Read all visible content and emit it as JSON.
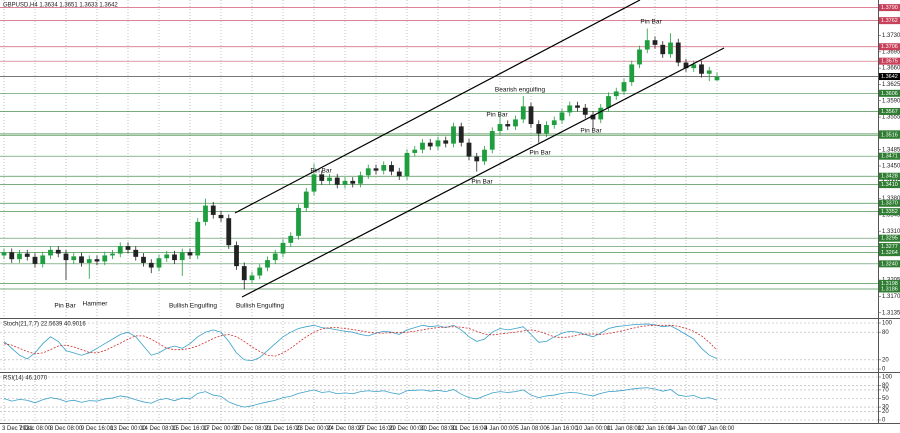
{
  "chart_data": [
    {
      "type": "candlestick",
      "title": "GBPUSD,H4  1.3634 1.3651 1.3633 1.3642",
      "categories": [
        "3 Dec 2021",
        null,
        null,
        null,
        "7 Dec 08:00",
        null,
        null,
        null,
        "8 Dec 08:00",
        null,
        null,
        null,
        "9 Dec 16:00",
        null,
        null,
        null,
        "13 Dec 00:00",
        null,
        null,
        null,
        "14 Dec 08:00",
        null,
        null,
        null,
        "15 Dec 16:00",
        null,
        null,
        null,
        "17 Dec 00:00",
        null,
        null,
        null,
        "20 Dec 08:00",
        null,
        null,
        null,
        "21 Dec 16:00",
        null,
        null,
        null,
        "23 Dec 00:00",
        null,
        null,
        null,
        "24 Dec 08:00",
        null,
        null,
        null,
        "27 Dec 16:00",
        null,
        null,
        null,
        "29 Dec 00:00",
        null,
        null,
        null,
        "30 Dec 08:00",
        null,
        null,
        null,
        "31 Dec 16:00",
        null,
        null,
        null,
        "4 Jan 00:00",
        null,
        null,
        null,
        "5 Jan 08:00",
        null,
        null,
        null,
        "6 Jan 16:00",
        null,
        null,
        null,
        "10 Jan 00:00",
        null,
        null,
        null,
        "11 Jan 08:00",
        null,
        null,
        null,
        "12 Jan 16:00",
        null,
        null,
        null,
        "14 Jan 00:00",
        null,
        null,
        null,
        "17 Jan 08:00"
      ],
      "open": [
        1.3258,
        1.3265,
        1.325,
        1.3262,
        1.3255,
        1.324,
        1.3258,
        1.327,
        1.3262,
        1.3248,
        1.3256,
        1.3242,
        1.325,
        1.3245,
        1.3258,
        1.3262,
        1.3278,
        1.327,
        1.3255,
        1.3242,
        1.3232,
        1.3252,
        1.326,
        1.3248,
        1.3265,
        1.3258,
        1.333,
        1.3365,
        1.3345,
        1.3338,
        1.328,
        1.3235,
        1.3205,
        1.3215,
        1.3232,
        1.3248,
        1.3262,
        1.3285,
        1.33,
        1.336,
        1.3395,
        1.3432,
        1.3418,
        1.3425,
        1.341,
        1.3418,
        1.3412,
        1.343,
        1.3445,
        1.344,
        1.3452,
        1.3438,
        1.3428,
        1.3478,
        1.3485,
        1.35,
        1.3492,
        1.3505,
        1.3498,
        1.3535,
        1.35,
        1.347,
        1.346,
        1.3485,
        1.3525,
        1.354,
        1.3535,
        1.355,
        1.3578,
        1.354,
        1.352,
        1.3538,
        1.3548,
        1.3565,
        1.358,
        1.3575,
        1.356,
        1.355,
        1.3575,
        1.36,
        1.361,
        1.363,
        1.3668,
        1.37,
        1.372,
        1.371,
        1.369,
        1.3715,
        1.3672,
        1.366,
        1.3668,
        1.3648,
        1.3634
      ],
      "high": [
        1.3273,
        1.3273,
        1.327,
        1.327,
        1.3263,
        1.3266,
        1.3278,
        1.3278,
        1.327,
        1.3264,
        1.3264,
        1.3258,
        1.3258,
        1.3266,
        1.327,
        1.3286,
        1.3286,
        1.3278,
        1.3263,
        1.325,
        1.326,
        1.3268,
        1.3268,
        1.3273,
        1.3273,
        1.3338,
        1.338,
        1.3373,
        1.3353,
        1.3346,
        1.3288,
        1.3243,
        1.3223,
        1.324,
        1.3256,
        1.327,
        1.3293,
        1.3308,
        1.3368,
        1.3403,
        1.3455,
        1.344,
        1.3433,
        1.3433,
        1.3426,
        1.3426,
        1.3438,
        1.3453,
        1.3453,
        1.346,
        1.346,
        1.3446,
        1.3486,
        1.3493,
        1.3508,
        1.3508,
        1.3513,
        1.3513,
        1.3543,
        1.3543,
        1.3508,
        1.3478,
        1.3493,
        1.3533,
        1.356,
        1.3548,
        1.3558,
        1.36,
        1.3586,
        1.3548,
        1.3546,
        1.3556,
        1.3573,
        1.3588,
        1.3588,
        1.3583,
        1.3568,
        1.3583,
        1.3608,
        1.3618,
        1.3638,
        1.3676,
        1.3708,
        1.3745,
        1.3728,
        1.3718,
        1.3735,
        1.3723,
        1.368,
        1.3676,
        1.3676,
        1.3663,
        1.3651
      ],
      "low": [
        1.325,
        1.3242,
        1.3242,
        1.3247,
        1.3232,
        1.3232,
        1.325,
        1.3254,
        1.3205,
        1.324,
        1.3234,
        1.3208,
        1.3237,
        1.3237,
        1.325,
        1.3254,
        1.3262,
        1.3247,
        1.3234,
        1.322,
        1.3224,
        1.3244,
        1.324,
        1.3214,
        1.325,
        1.325,
        1.3322,
        1.3337,
        1.333,
        1.3272,
        1.3227,
        1.3185,
        1.3197,
        1.3207,
        1.3224,
        1.324,
        1.3254,
        1.3277,
        1.3292,
        1.3352,
        1.3387,
        1.341,
        1.341,
        1.3402,
        1.3402,
        1.3404,
        1.3404,
        1.3422,
        1.3432,
        1.3432,
        1.343,
        1.342,
        1.342,
        1.347,
        1.3477,
        1.3484,
        1.3484,
        1.349,
        1.349,
        1.3492,
        1.3462,
        1.3438,
        1.3452,
        1.3477,
        1.3517,
        1.3527,
        1.3527,
        1.3542,
        1.3532,
        1.35,
        1.3512,
        1.353,
        1.354,
        1.3557,
        1.3567,
        1.3552,
        1.353,
        1.3542,
        1.3567,
        1.3592,
        1.3602,
        1.3622,
        1.366,
        1.3692,
        1.3702,
        1.3682,
        1.3682,
        1.3664,
        1.3652,
        1.3652,
        1.364,
        1.3632,
        1.3633
      ],
      "close": [
        1.3265,
        1.325,
        1.3262,
        1.3255,
        1.324,
        1.3258,
        1.327,
        1.3262,
        1.3248,
        1.3256,
        1.3242,
        1.325,
        1.3245,
        1.3258,
        1.3262,
        1.3278,
        1.327,
        1.3255,
        1.3242,
        1.3232,
        1.3252,
        1.326,
        1.3248,
        1.3265,
        1.3258,
        1.333,
        1.3365,
        1.3345,
        1.3338,
        1.328,
        1.3235,
        1.3205,
        1.3215,
        1.3232,
        1.3248,
        1.3262,
        1.3285,
        1.33,
        1.336,
        1.3395,
        1.3432,
        1.3418,
        1.3425,
        1.341,
        1.3418,
        1.3412,
        1.343,
        1.3445,
        1.344,
        1.3452,
        1.3438,
        1.3428,
        1.3478,
        1.3485,
        1.35,
        1.3492,
        1.3505,
        1.3498,
        1.3535,
        1.35,
        1.347,
        1.346,
        1.3485,
        1.3525,
        1.354,
        1.3535,
        1.355,
        1.3578,
        1.354,
        1.352,
        1.3538,
        1.3548,
        1.3565,
        1.358,
        1.3575,
        1.356,
        1.355,
        1.3575,
        1.36,
        1.361,
        1.363,
        1.3668,
        1.37,
        1.372,
        1.371,
        1.369,
        1.3715,
        1.3672,
        1.366,
        1.3668,
        1.3648,
        1.3655,
        1.3642
      ],
      "up_color": "#1e9e3e",
      "down_color": "#222222",
      "ylim": [
        1.3128,
        1.3802
      ],
      "yticks": [
        1.3135,
        {
          "value": 1.317,
          "label": "1.3170"
        },
        1.3205,
        {
          "value": 1.324,
          "label": "1.3240"
        },
        1.3275,
        {
          "value": 1.331,
          "label": "1.3310"
        },
        1.3345,
        {
          "value": 1.338,
          "label": "1.3380"
        },
        1.3415,
        {
          "value": 1.345,
          "label": "1.3450"
        },
        1.3485,
        {
          "value": 1.352,
          "label": "1.3520"
        },
        1.3555,
        {
          "value": 1.359,
          "label": "1.3590"
        },
        1.3625,
        {
          "value": 1.366,
          "label": "1.3660"
        },
        1.3695,
        {
          "value": 1.373,
          "label": "1.3730"
        }
      ],
      "levels": [
        {
          "value": 1.379,
          "label": "1.3790"
        },
        1.3762,
        1.3706,
        1.3675,
        1.3642,
        1.3606,
        1.3567,
        1.3519,
        1.3516,
        1.3471,
        1.3428,
        {
          "value": 1.341,
          "label": "1.3410"
        },
        {
          "value": 1.337,
          "label": "1.3370"
        },
        1.3352,
        1.3295,
        1.3277,
        1.3264,
        {
          "value": 1.324,
          "label": "1.3240"
        },
        1.3198,
        1.3186
      ],
      "level_colors": [
        "#c8405a",
        "#c8405a",
        "#c8405a",
        "#c8405a",
        "#000000",
        "#2e7d32",
        "#2e7d32",
        "#2e7d32",
        "#2e7d32",
        "#2e7d32",
        "#2e7d32",
        "#2e7d32",
        "#2e7d32",
        "#2e7d32",
        "#2e7d32",
        "#2e7d32",
        "#2e7d32",
        "#2e7d32",
        "#2e7d32",
        "#2e7d32"
      ],
      "annotations": [
        "Pin Bar",
        "Hammer",
        "Bullish Engulfing",
        "Bullish Engulfing",
        "Pin Bar",
        "Pin Bar",
        "Pin Bar",
        "Bearish engulfing",
        "Pin Bar",
        "Pin Bar",
        "Pin Bar"
      ]
    },
    {
      "type": "line",
      "title": "Stoch(21,7,7) 22.5639 40.9016",
      "series": [
        {
          "color": "#3aa0c8",
          "dashed": false,
          "values": [
            60,
            45,
            30,
            22,
            35,
            55,
            70,
            60,
            40,
            35,
            30,
            35,
            45,
            55,
            65,
            75,
            80,
            70,
            50,
            30,
            35,
            45,
            50,
            45,
            55,
            70,
            80,
            85,
            80,
            60,
            35,
            20,
            18,
            25,
            40,
            55,
            70,
            80,
            88,
            92,
            95,
            90,
            88,
            85,
            82,
            80,
            75,
            72,
            78,
            82,
            80,
            75,
            85,
            90,
            95,
            92,
            94,
            90,
            95,
            85,
            70,
            60,
            65,
            80,
            88,
            85,
            88,
            92,
            75,
            58,
            60,
            70,
            78,
            82,
            80,
            75,
            70,
            78,
            88,
            92,
            94,
            96,
            97,
            98,
            96,
            92,
            94,
            85,
            75,
            65,
            45,
            30,
            22.5639
          ]
        },
        {
          "color": "#d03030",
          "dashed": true,
          "values": [
            55,
            52,
            45,
            38,
            33,
            35,
            42,
            50,
            52,
            48,
            42,
            36,
            35,
            40,
            48,
            56,
            65,
            72,
            72,
            65,
            55,
            45,
            42,
            42,
            45,
            50,
            58,
            66,
            73,
            75,
            70,
            60,
            48,
            38,
            30,
            28,
            35,
            45,
            58,
            70,
            80,
            87,
            90,
            90,
            88,
            86,
            83,
            80,
            78,
            78,
            79,
            79,
            80,
            82,
            85,
            88,
            90,
            91,
            92,
            91,
            88,
            82,
            76,
            74,
            76,
            78,
            80,
            83,
            85,
            82,
            76,
            70,
            68,
            70,
            74,
            76,
            76,
            75,
            77,
            80,
            84,
            88,
            92,
            94,
            95,
            95,
            95,
            93,
            88,
            82,
            72,
            58,
            40.9016
          ]
        }
      ],
      "ylim": [
        0,
        100
      ],
      "yticks": [
        0,
        20,
        80,
        100
      ]
    },
    {
      "type": "line",
      "title": "RSI(14) 46.1070",
      "series": [
        {
          "color": "#3aa0c8",
          "dashed": false,
          "values": [
            50,
            44,
            48,
            46,
            40,
            47,
            52,
            49,
            43,
            46,
            41,
            45,
            44,
            49,
            51,
            56,
            53,
            47,
            42,
            39,
            47,
            50,
            45,
            51,
            49,
            62,
            66,
            58,
            55,
            42,
            35,
            30,
            33,
            38,
            42,
            46,
            52,
            55,
            62,
            66,
            70,
            64,
            66,
            61,
            63,
            61,
            66,
            68,
            66,
            68,
            63,
            60,
            68,
            69,
            70,
            67,
            69,
            66,
            71,
            60,
            52,
            49,
            56,
            63,
            66,
            64,
            66,
            70,
            58,
            52,
            56,
            58,
            62,
            64,
            63,
            59,
            56,
            62,
            66,
            67,
            69,
            72,
            74,
            75,
            72,
            67,
            71,
            58,
            55,
            57,
            50,
            52,
            46.107
          ]
        }
      ],
      "ylim": [
        0,
        100
      ],
      "yticks": [
        0,
        20,
        30,
        50,
        70,
        80,
        100
      ]
    }
  ]
}
